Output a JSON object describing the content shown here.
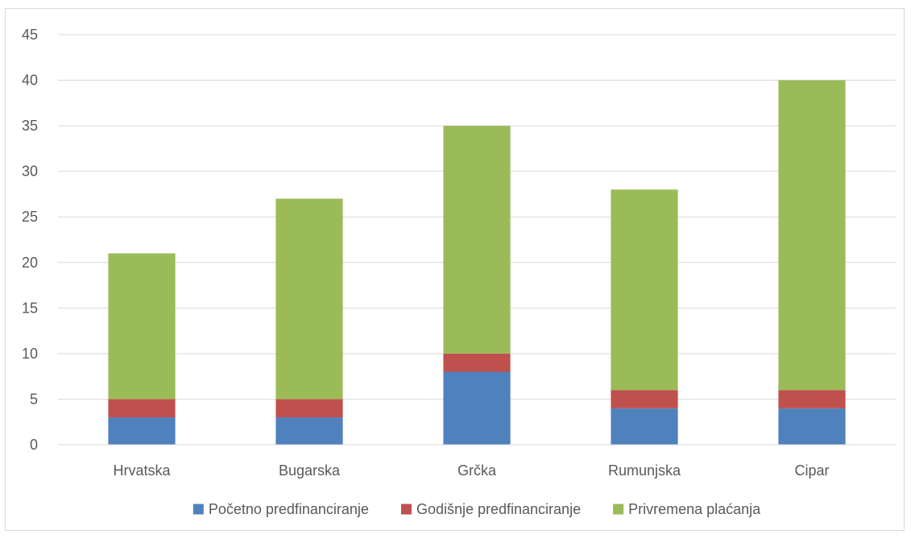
{
  "chart_data": {
    "type": "bar",
    "stacked": true,
    "categories": [
      "Hrvatska",
      "Bugarska",
      "Grčka",
      "Rumunjska",
      "Cipar"
    ],
    "series": [
      {
        "name": "Početno predfinanciranje",
        "color": "#4f81bd",
        "values": [
          3,
          3,
          8,
          4,
          4
        ]
      },
      {
        "name": "Godišnje predfinanciranje",
        "color": "#c0504d",
        "values": [
          2,
          2,
          2,
          2,
          2
        ]
      },
      {
        "name": "Privremena plaćanja",
        "color": "#9bbb59",
        "values": [
          16,
          22,
          25,
          22,
          34
        ]
      }
    ],
    "yticks": [
      "0",
      "5",
      "10",
      "15",
      "20",
      "25",
      "30",
      "35",
      "40",
      "45"
    ],
    "ylim": [
      0,
      45
    ],
    "grid": true,
    "legend_position": "bottom",
    "title": "",
    "xlabel": "",
    "ylabel": ""
  }
}
